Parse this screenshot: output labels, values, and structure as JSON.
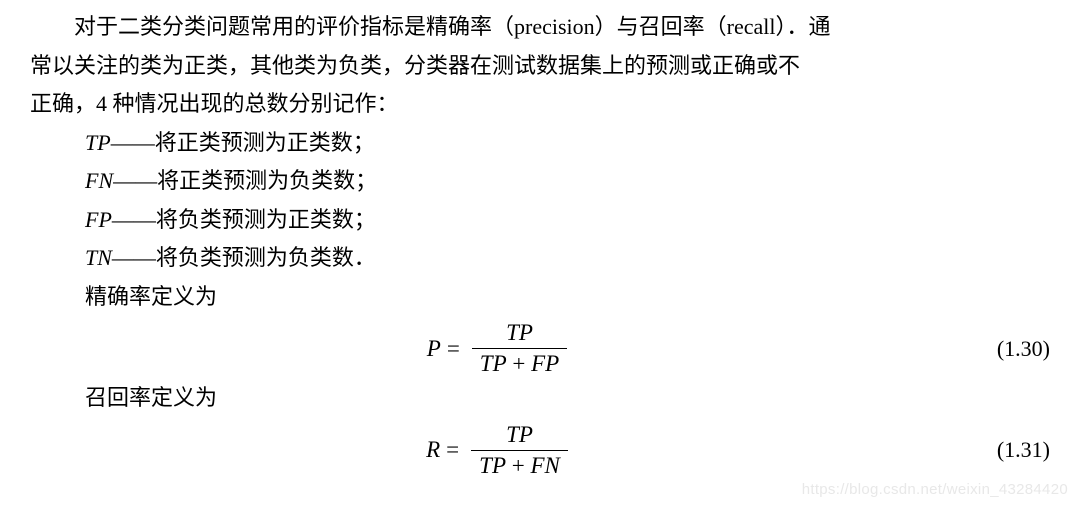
{
  "para1_a": "对于二类分类问题常用的评价指标是精确率（precision）与召回率（recall）．通",
  "para1_b": "常以关注的类为正类，其他类为负类，分类器在测试数据集上的预测或正确或不",
  "para1_c": "正确，4 种情况出现的总数分别记作：",
  "defs": {
    "tp": {
      "sym": "TP",
      "dash": "——",
      "txt": "将正类预测为正类数；"
    },
    "fn": {
      "sym": "FN",
      "dash": "——",
      "txt": "将正类预测为负类数；"
    },
    "fp": {
      "sym": "FP",
      "dash": "——",
      "txt": "将负类预测为正类数；"
    },
    "tn": {
      "sym": "TN",
      "dash": "——",
      "txt": "将负类预测为负类数．"
    }
  },
  "precision_label": "精确率定义为",
  "recall_label": "召回率定义为",
  "formula1": {
    "lhs": "P",
    "eq": "=",
    "num": "TP",
    "den_a": "TP",
    "den_plus": " + ",
    "den_b": "FP",
    "number": "(1.30)"
  },
  "formula2": {
    "lhs": "R",
    "eq": "=",
    "num": "TP",
    "den_a": "TP",
    "den_plus": " + ",
    "den_b": "FN",
    "number": "(1.31)"
  },
  "watermark": "https://blog.csdn.net/weixin_43284420"
}
